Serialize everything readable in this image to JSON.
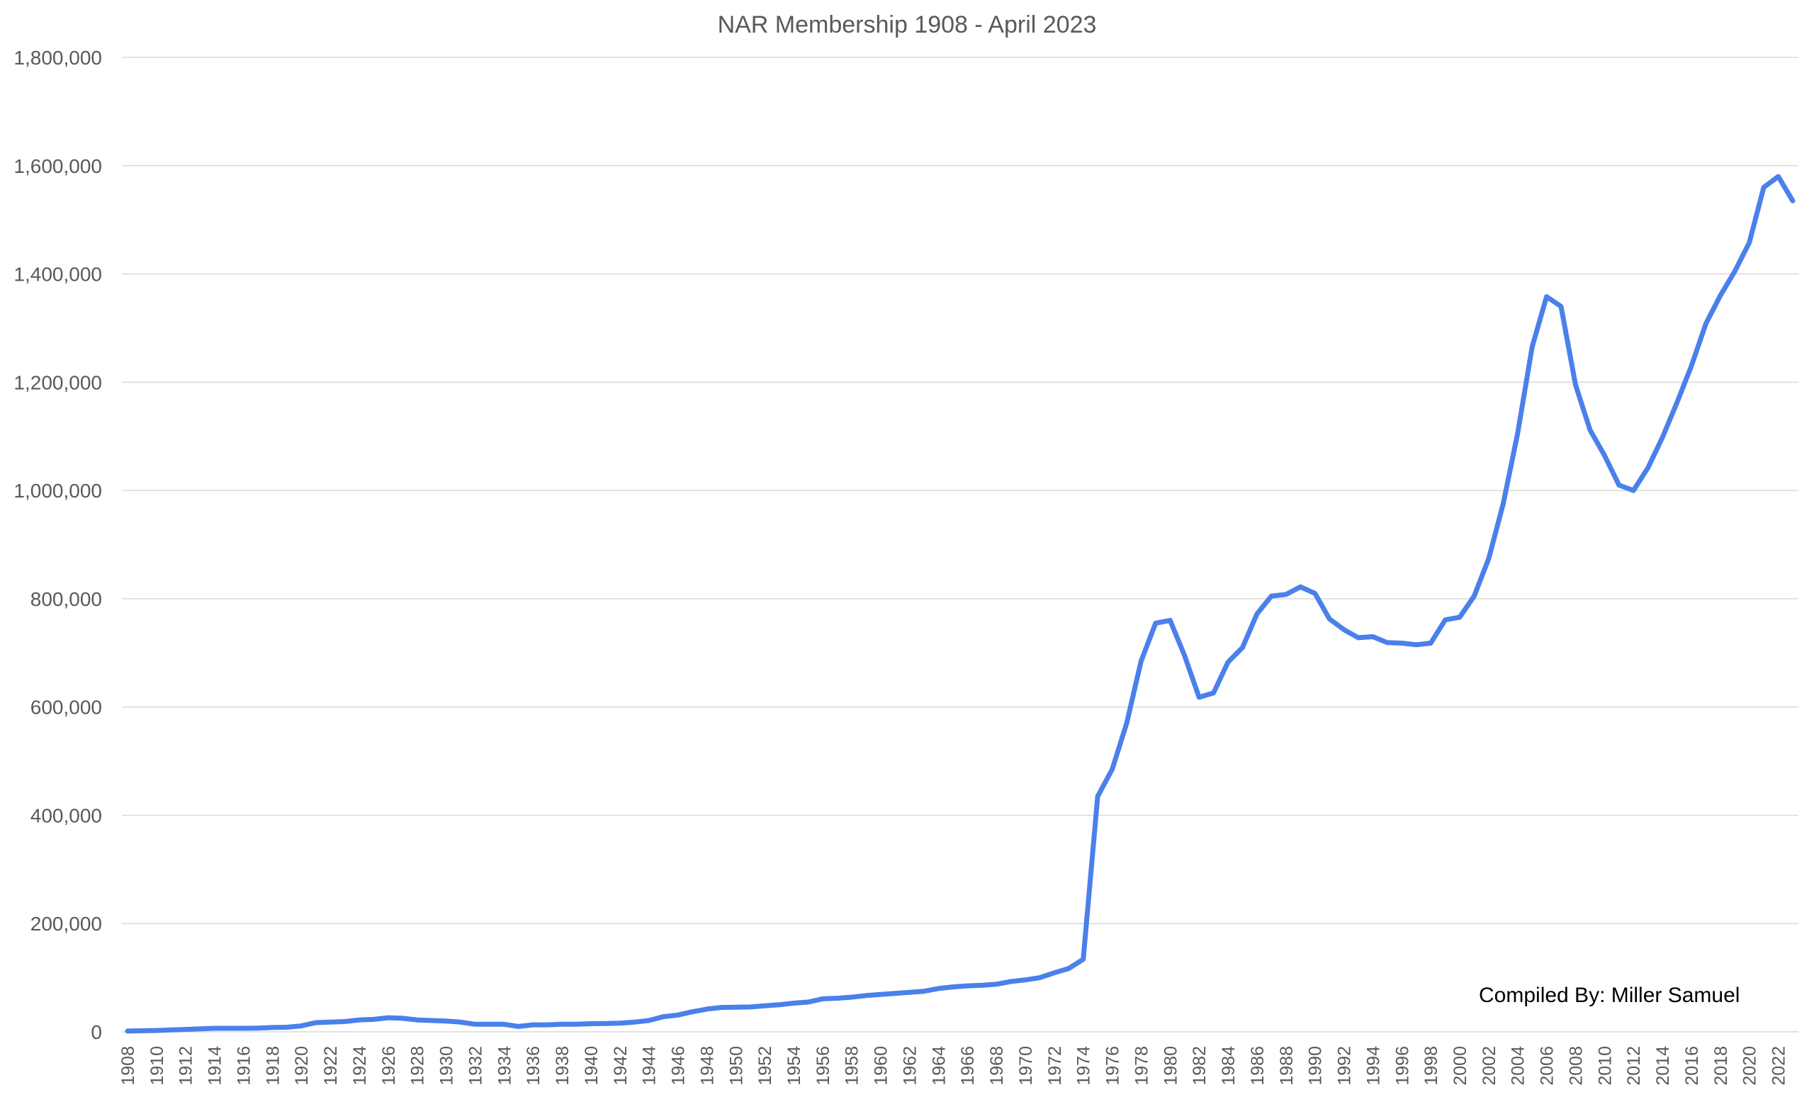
{
  "chart_data": {
    "type": "line",
    "title": "NAR Membership 1908 - April 2023",
    "annotation": "Compiled By: Miller Samuel",
    "xlabel": "",
    "ylabel": "",
    "ylim": [
      0,
      1800000
    ],
    "yticks": [
      0,
      200000,
      400000,
      600000,
      800000,
      1000000,
      1200000,
      1400000,
      1600000,
      1800000
    ],
    "ytick_labels": [
      "0",
      "200,000",
      "400,000",
      "600,000",
      "800,000",
      "1,000,000",
      "1,200,000",
      "1,400,000",
      "1,600,000",
      "1,800,000"
    ],
    "xtick_labels": [
      "1908",
      "1910",
      "1912",
      "1914",
      "1916",
      "1918",
      "1920",
      "1922",
      "1924",
      "1926",
      "1928",
      "1930",
      "1932",
      "1934",
      "1936",
      "1938",
      "1940",
      "1942",
      "1944",
      "1946",
      "1948",
      "1950",
      "1952",
      "1954",
      "1956",
      "1958",
      "1960",
      "1962",
      "1964",
      "1966",
      "1968",
      "1970",
      "1972",
      "1974",
      "1976",
      "1978",
      "1980",
      "1982",
      "1984",
      "1986",
      "1988",
      "1990",
      "1992",
      "1994",
      "1996",
      "1998",
      "2000",
      "2002",
      "2004",
      "2006",
      "2008",
      "2010",
      "2012",
      "2014",
      "2016",
      "2018",
      "2020",
      "2022"
    ],
    "grid": true,
    "legend": "none",
    "line_color": "#4a80eb",
    "x": [
      1908,
      1909,
      1910,
      1911,
      1912,
      1913,
      1914,
      1915,
      1916,
      1917,
      1918,
      1919,
      1920,
      1921,
      1922,
      1923,
      1924,
      1925,
      1926,
      1927,
      1928,
      1929,
      1930,
      1931,
      1932,
      1933,
      1934,
      1935,
      1936,
      1937,
      1938,
      1939,
      1940,
      1941,
      1942,
      1943,
      1944,
      1945,
      1946,
      1947,
      1948,
      1949,
      1950,
      1951,
      1952,
      1953,
      1954,
      1955,
      1956,
      1957,
      1958,
      1959,
      1960,
      1961,
      1962,
      1963,
      1964,
      1965,
      1966,
      1967,
      1968,
      1969,
      1970,
      1971,
      1972,
      1973,
      1974,
      1975,
      1976,
      1977,
      1978,
      1979,
      1980,
      1981,
      1982,
      1983,
      1984,
      1985,
      1986,
      1987,
      1988,
      1989,
      1990,
      1991,
      1992,
      1993,
      1994,
      1995,
      1996,
      1997,
      1998,
      1999,
      2000,
      2001,
      2002,
      2003,
      2004,
      2005,
      2006,
      2007,
      2008,
      2009,
      2010,
      2011,
      2012,
      2013,
      2014,
      2015,
      2016,
      2017,
      2018,
      2019,
      2020,
      2021,
      2022,
      2023
    ],
    "series": [
      {
        "values": [
          1500,
          2000,
          2500,
          3500,
          4500,
          5500,
          6500,
          6500,
          6500,
          7000,
          8000,
          8500,
          11000,
          17000,
          18000,
          19000,
          22000,
          23000,
          26000,
          25000,
          22000,
          21000,
          20000,
          18000,
          14000,
          14000,
          14000,
          10000,
          13000,
          13000,
          14000,
          14000,
          15000,
          15500,
          16000,
          18000,
          21000,
          28000,
          31000,
          37000,
          42000,
          45000,
          45500,
          46000,
          48000,
          50000,
          53000,
          55000,
          61000,
          62000,
          64000,
          67000,
          69000,
          71000,
          73000,
          75000,
          80000,
          83000,
          85000,
          86000,
          88000,
          93000,
          96000,
          100000,
          109000,
          117000,
          134000,
          435000,
          485000,
          570000,
          685000,
          755000,
          760000,
          695000,
          618000,
          626000,
          683000,
          710000,
          772000,
          805000,
          808000,
          822000,
          810000,
          763000,
          743000,
          728000,
          730000,
          719000,
          718000,
          715000,
          718000,
          761000,
          766000,
          805000,
          874000,
          975000,
          1105000,
          1265000,
          1358000,
          1340000,
          1195000,
          1112000,
          1065000,
          1010000,
          1000000,
          1042000,
          1098000,
          1162000,
          1230000,
          1308000,
          1360000,
          1405000,
          1458000,
          1560000,
          1580000,
          1535000
        ]
      }
    ]
  }
}
